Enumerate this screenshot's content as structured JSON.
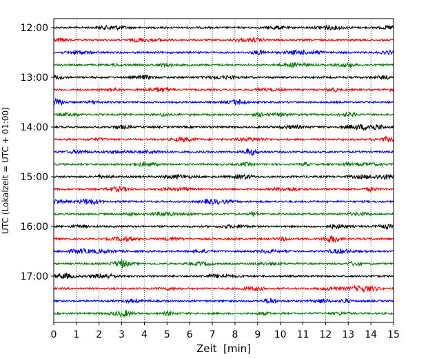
{
  "chart_data": {
    "type": "line",
    "title": "",
    "xlabel": "Zeit  [min]",
    "ylabel": "UTC (Lokalzeit = UTC + 01:00)",
    "xlim": [
      0,
      15
    ],
    "x_ticks": [
      "0",
      "1",
      "2",
      "3",
      "4",
      "5",
      "6",
      "7",
      "8",
      "9",
      "10",
      "11",
      "12",
      "13",
      "14",
      "15"
    ],
    "y_ticks": [
      "12:00",
      "13:00",
      "14:00",
      "15:00",
      "16:00",
      "17:00"
    ],
    "grid": "vertical dotted lines at each minute",
    "trace_interval_minutes": 15,
    "trace_start_times": [
      "12:00",
      "12:15",
      "12:30",
      "12:45",
      "13:00",
      "13:15",
      "13:30",
      "13:45",
      "14:00",
      "14:15",
      "14:30",
      "14:45",
      "15:00",
      "15:15",
      "15:30",
      "15:45",
      "16:00",
      "16:15",
      "16:30",
      "16:45",
      "17:00",
      "17:15",
      "17:30",
      "17:45"
    ],
    "trace_color_cycle": [
      "#000000",
      "#ff0000",
      "#0000ff",
      "#008000"
    ],
    "description": "Seismogram helicorder: one trace per 15-minute interval, low-amplitude continuous noise"
  }
}
